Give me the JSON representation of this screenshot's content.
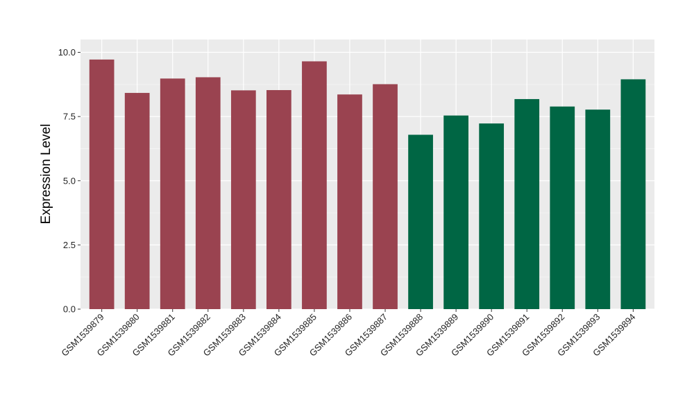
{
  "chart_data": {
    "type": "bar",
    "title": "",
    "xlabel": "",
    "ylabel": "Expression Level",
    "ylim": [
      0,
      10.5
    ],
    "yticks": [
      "0.0",
      "2.5",
      "5.0",
      "7.5",
      "10.0"
    ],
    "grid": true,
    "categories": [
      "GSM1539879",
      "GSM1539880",
      "GSM1539881",
      "GSM1539882",
      "GSM1539883",
      "GSM1539884",
      "GSM1539885",
      "GSM1539886",
      "GSM1539887",
      "GSM1539888",
      "GSM1539889",
      "GSM1539890",
      "GSM1539891",
      "GSM1539892",
      "GSM1539893",
      "GSM1539894"
    ],
    "values": [
      9.72,
      8.42,
      8.98,
      9.03,
      8.52,
      8.53,
      9.65,
      8.36,
      8.76,
      6.79,
      7.54,
      7.23,
      8.18,
      7.89,
      7.77,
      8.95
    ],
    "bar_colors": [
      "#9A4350",
      "#9A4350",
      "#9A4350",
      "#9A4350",
      "#9A4350",
      "#9A4350",
      "#9A4350",
      "#9A4350",
      "#9A4350",
      "#006644",
      "#006644",
      "#006644",
      "#006644",
      "#006644",
      "#006644",
      "#006644"
    ],
    "colors": {
      "panel": "#EBEBEB",
      "grid_major": "#FFFFFF",
      "grid_minor": "#F4F4F4"
    }
  }
}
